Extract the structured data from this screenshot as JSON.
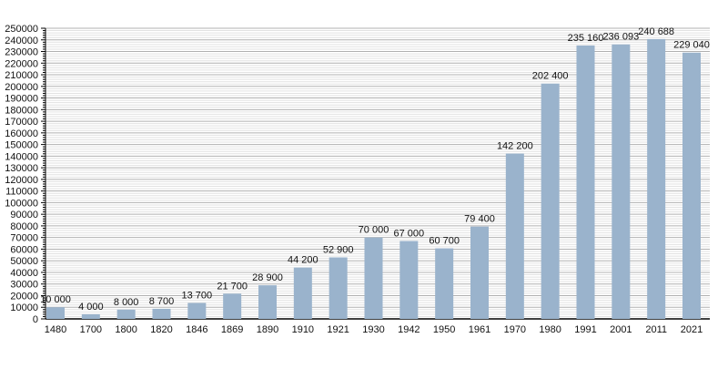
{
  "chart_data": {
    "type": "bar",
    "categories": [
      "1480",
      "1700",
      "1800",
      "1820",
      "1846",
      "1869",
      "1890",
      "1910",
      "1921",
      "1930",
      "1942",
      "1950",
      "1961",
      "1970",
      "1980",
      "1991",
      "2001",
      "2011",
      "2021"
    ],
    "values": [
      10000,
      4000,
      8000,
      8700,
      13700,
      21700,
      28900,
      44200,
      52900,
      70000,
      67000,
      60700,
      79400,
      142200,
      202400,
      235160,
      236093,
      240688,
      229040
    ],
    "data_labels": [
      "10 000",
      "4 000",
      "8 000",
      "8 700",
      "13 700",
      "21 700",
      "28 900",
      "44 200",
      "52 900",
      "70 000",
      "67 000",
      "60 700",
      "79 400",
      "142 200",
      "202 400",
      "235 160",
      "236 093",
      "240 688",
      "229 040"
    ],
    "ylim": [
      0,
      250000
    ],
    "y_ticks": [
      "0",
      "10000",
      "20000",
      "30000",
      "40000",
      "50000",
      "60000",
      "70000",
      "80000",
      "90000",
      "100000",
      "110000",
      "120000",
      "130000",
      "140000",
      "150000",
      "160000",
      "170000",
      "180000",
      "190000",
      "200000",
      "210000",
      "220000",
      "230000",
      "240000",
      "250000"
    ],
    "grid": true,
    "title": "",
    "xlabel": "",
    "ylabel": "",
    "bar_color": "#9ab3cc"
  }
}
